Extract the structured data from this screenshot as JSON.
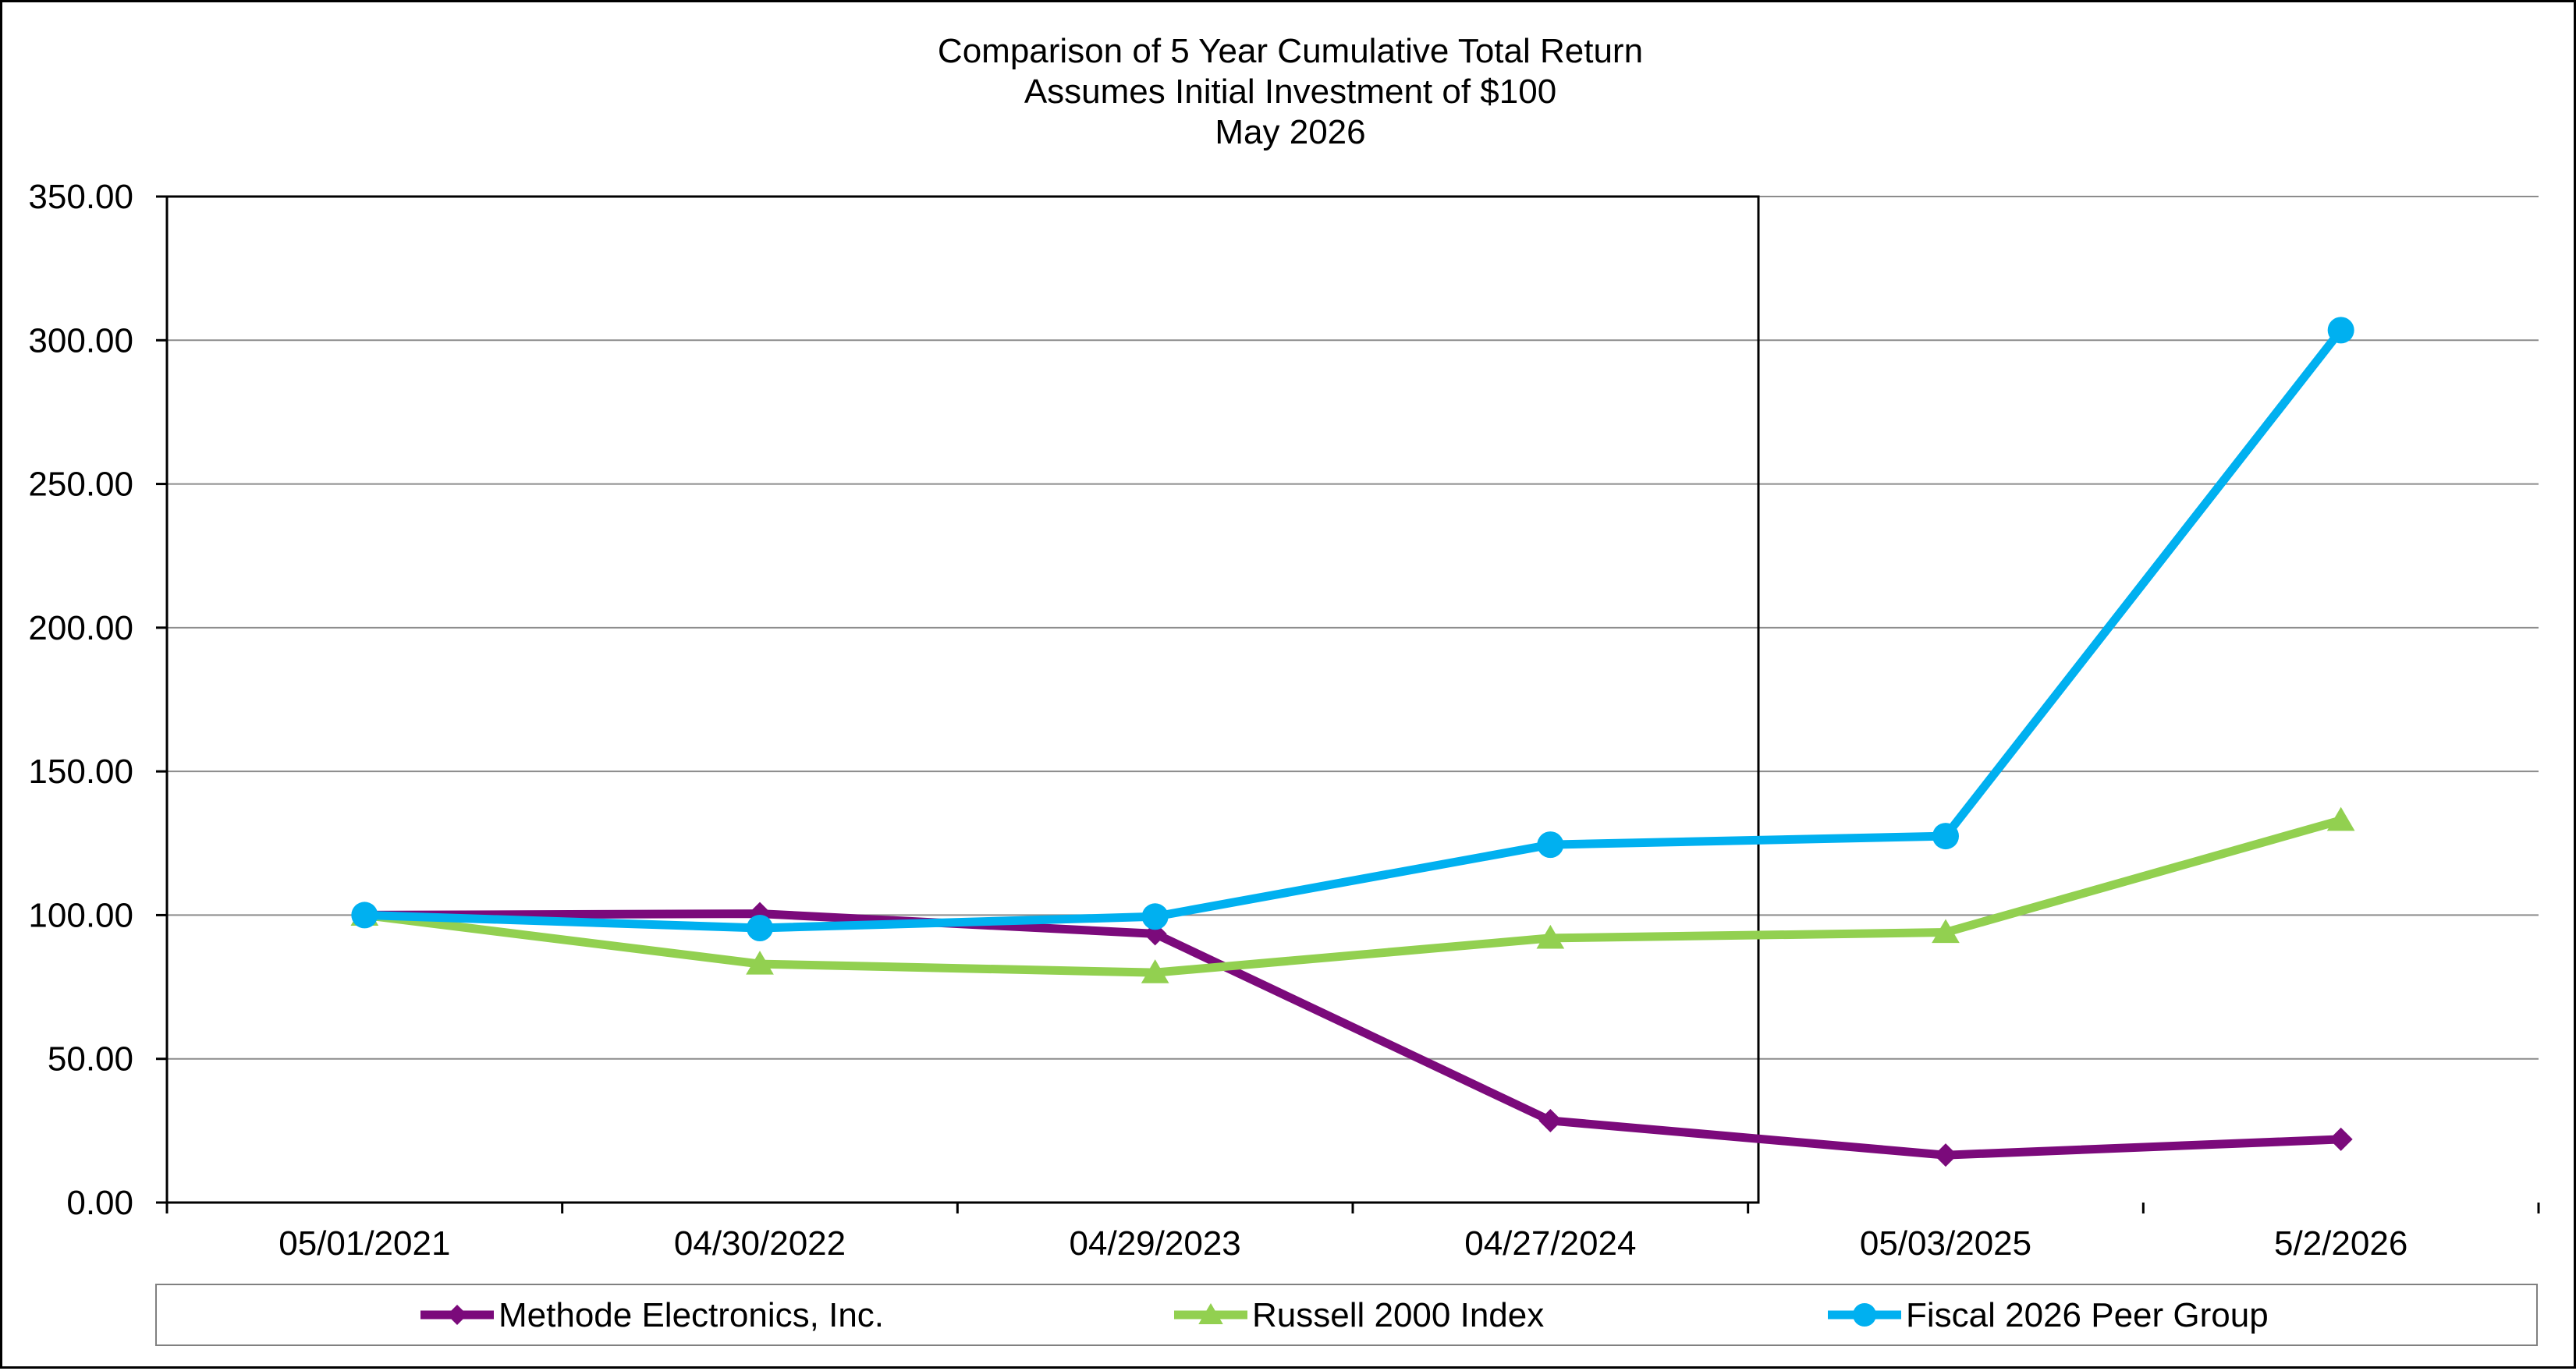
{
  "chart_data": {
    "type": "line",
    "title": "Comparison of 5 Year Cumulative Total Return",
    "subtitle": "Assumes Initial Investment of $100",
    "subtitle2": "May 2026",
    "xlabel": "",
    "ylabel": "",
    "categories": [
      "05/01/2021",
      "04/30/2022",
      "04/29/2023",
      "04/27/2024",
      "05/03/2025",
      "5/2/2026"
    ],
    "ylim": [
      0,
      350
    ],
    "yticks": [
      "0.00",
      "50.00",
      "100.00",
      "150.00",
      "200.00",
      "250.00",
      "300.00",
      "350.00"
    ],
    "grid": true,
    "legend_position": "bottom",
    "series": [
      {
        "name": "Methode Electronics, Inc.",
        "color": "#7b0a7b",
        "marker": "diamond",
        "values": [
          100.0,
          100.5,
          93.5,
          28.5,
          16.5,
          22.0
        ]
      },
      {
        "name": "Russell 2000 Index",
        "color": "#92d050",
        "marker": "triangle",
        "values": [
          100.0,
          83.0,
          80.0,
          92.0,
          94.0,
          133.0
        ]
      },
      {
        "name": "Fiscal 2026 Peer Group",
        "color": "#00b0f0",
        "marker": "circle",
        "values": [
          100.0,
          95.5,
          99.5,
          124.5,
          127.5,
          303.5
        ]
      }
    ]
  }
}
